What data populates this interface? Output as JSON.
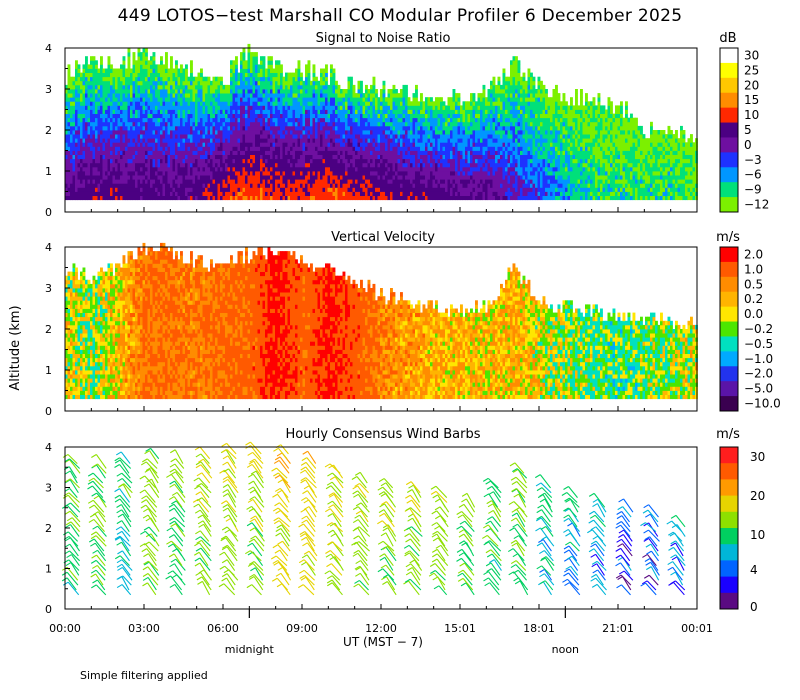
{
  "title": "449 LOTOS−test Marshall CO Modular Profiler  6 December 2025",
  "ylabel": "Altitude (km)",
  "xlabel": "UT  (MST − 7)",
  "footnote": "Simple filtering applied",
  "x_ticks": [
    "00:00",
    "03:00",
    "06:00",
    "09:00",
    "12:00",
    "15:01",
    "18:01",
    "21:01",
    "00:01"
  ],
  "x_tick_hours": [
    0,
    3,
    6,
    9,
    12,
    15,
    18,
    21,
    24
  ],
  "day_markers": [
    {
      "label": "midnight",
      "hour": 7
    },
    {
      "label": "noon",
      "hour": 19
    }
  ],
  "chart_data": [
    {
      "type": "heatmap",
      "title": "Signal to Noise Ratio",
      "unit": "dB",
      "xlim": [
        0,
        24
      ],
      "ylim": [
        0,
        4
      ],
      "y_ticks": [
        "0",
        "1",
        "2",
        "3",
        "4"
      ],
      "colorbar": {
        "labels": [
          "30",
          "25",
          "20",
          "15",
          "10",
          "5",
          "0",
          "−3",
          "−6",
          "−9",
          "−12"
        ],
        "colors": [
          "#ffffff",
          "#ffff00",
          "#ffc800",
          "#ff8c00",
          "#ff2800",
          "#4b0082",
          "#6e0fa0",
          "#1e32ff",
          "#0096ff",
          "#00e07a",
          "#7cf000"
        ]
      },
      "profile": {
        "hours": [
          0,
          1,
          2,
          3,
          4,
          5,
          6,
          7,
          8,
          9,
          10,
          11,
          12,
          13,
          14,
          15,
          16,
          17,
          18,
          19,
          20,
          21,
          22,
          23,
          24
        ],
        "top_km": [
          3.3,
          3.6,
          3.6,
          3.8,
          3.6,
          3.4,
          3.2,
          3.9,
          3.5,
          3.4,
          3.3,
          3.0,
          3.0,
          2.9,
          2.8,
          2.7,
          2.9,
          3.6,
          3.0,
          2.8,
          2.7,
          2.5,
          2.0,
          1.9,
          1.8
        ],
        "snr_low_db": [
          3,
          6,
          6,
          5,
          5,
          5,
          10,
          12,
          10,
          10,
          12,
          10,
          8,
          6,
          6,
          4,
          3,
          0,
          -3,
          -6,
          -9,
          -9,
          -9,
          -9,
          -12
        ]
      }
    },
    {
      "type": "heatmap",
      "title": "Vertical Velocity",
      "unit": "m/s",
      "xlim": [
        0,
        24
      ],
      "ylim": [
        0,
        4
      ],
      "y_ticks": [
        "0",
        "1",
        "2",
        "3",
        "4"
      ],
      "colorbar": {
        "labels": [
          "2.0",
          "1.0",
          "0.5",
          "0.2",
          "0.0",
          "−0.2",
          "−0.5",
          "−1.0",
          "−2.0",
          "−5.0",
          "−10.0"
        ],
        "colors": [
          "#ff0000",
          "#ff5a00",
          "#ff8c00",
          "#ffb400",
          "#ffe600",
          "#4ce600",
          "#00e0c0",
          "#00aaff",
          "#2233ee",
          "#5a14a8",
          "#3a0050"
        ]
      },
      "profile": {
        "hours": [
          0,
          1,
          2,
          3,
          4,
          5,
          6,
          7,
          8,
          9,
          10,
          11,
          12,
          13,
          14,
          15,
          16,
          17,
          18,
          19,
          20,
          21,
          22,
          23,
          24
        ],
        "top_km": [
          3.4,
          3.2,
          3.5,
          4.0,
          3.8,
          3.6,
          3.5,
          3.8,
          3.8,
          3.6,
          3.5,
          3.1,
          2.8,
          2.6,
          2.5,
          2.4,
          2.5,
          3.4,
          2.6,
          2.5,
          2.4,
          2.3,
          2.2,
          2.2,
          2.1
        ],
        "w_mean_ms": [
          0.0,
          -0.2,
          0.2,
          0.8,
          0.8,
          0.7,
          0.9,
          1.0,
          1.8,
          1.0,
          1.8,
          1.2,
          0.6,
          0.4,
          0.3,
          0.3,
          0.1,
          0.3,
          0.0,
          -0.2,
          -0.3,
          -0.4,
          -0.3,
          -0.2,
          0.0
        ]
      }
    },
    {
      "type": "barbs",
      "title": "Hourly Consensus Wind Barbs",
      "unit": "m/s",
      "xlim": [
        0,
        24
      ],
      "ylim": [
        0,
        4
      ],
      "y_ticks": [
        "0",
        "1",
        "2",
        "3",
        "4"
      ],
      "colorbar": {
        "labels": [
          "30",
          "20",
          "10",
          "4",
          "0"
        ],
        "bands": [
          {
            "color": "#ff1e1e",
            "value": 35
          },
          {
            "color": "#ff5a00",
            "value": 27
          },
          {
            "color": "#ff9a00",
            "value": 22
          },
          {
            "color": "#e6d400",
            "value": 17
          },
          {
            "color": "#8ee000",
            "value": 12
          },
          {
            "color": "#00d060",
            "value": 8
          },
          {
            "color": "#00b6d8",
            "value": 5
          },
          {
            "color": "#0064ff",
            "value": 3
          },
          {
            "color": "#1a00ff",
            "value": 1.8
          },
          {
            "color": "#5a0a82",
            "value": 0.5
          }
        ]
      },
      "barb_hours": [
        0.5,
        1.5,
        2.5,
        3.5,
        4.5,
        5.5,
        6.5,
        7.5,
        8.5,
        9.5,
        10.5,
        11.5,
        12.5,
        13.5,
        14.5,
        15.5,
        16.5,
        17.5,
        18.5,
        19.5,
        20.5,
        21.5,
        22.5,
        23.5
      ],
      "barb_top_km": [
        3.6,
        3.5,
        3.7,
        3.8,
        3.7,
        3.8,
        3.9,
        3.9,
        3.9,
        3.6,
        3.4,
        3.2,
        3.0,
        2.9,
        2.8,
        2.6,
        3.1,
        3.4,
        3.0,
        2.8,
        2.6,
        2.5,
        2.3,
        2.1
      ],
      "barb_speed_ms": [
        8,
        9,
        6,
        10,
        9,
        11,
        12,
        12,
        16,
        16,
        13,
        12,
        11,
        12,
        11,
        9,
        8,
        9,
        6,
        5,
        4,
        3,
        2,
        4
      ]
    }
  ]
}
